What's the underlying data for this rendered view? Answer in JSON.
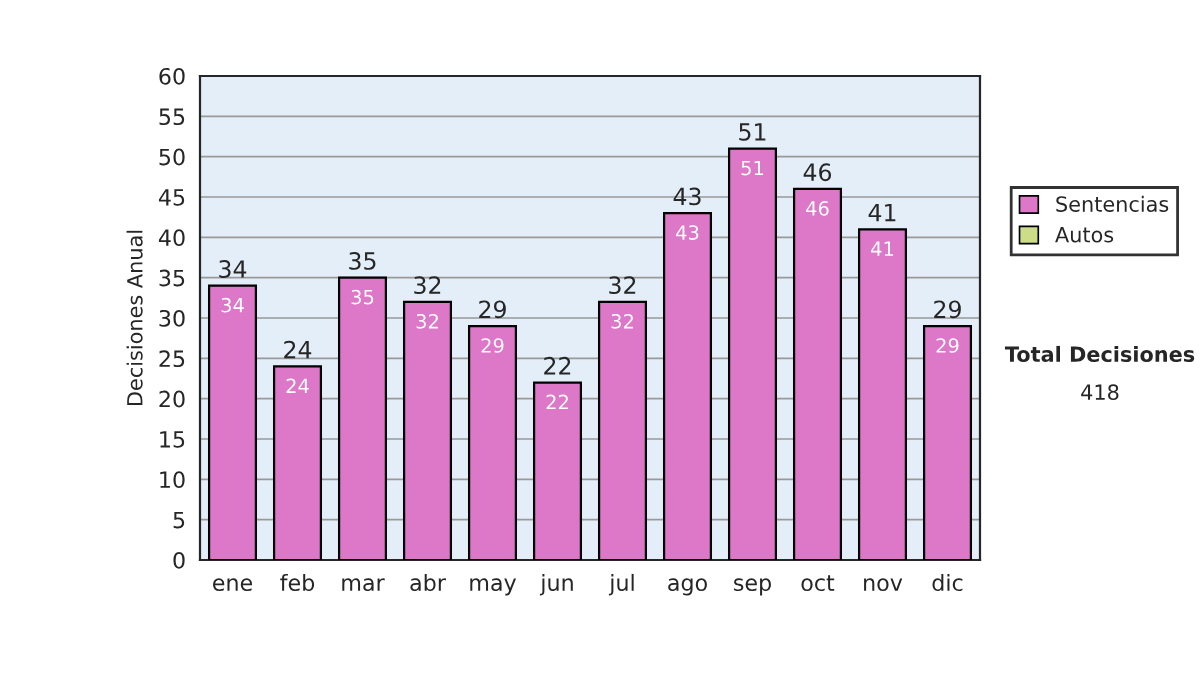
{
  "chart_data": {
    "type": "bar",
    "ylabel": "Decisiones Anual",
    "categories": [
      "ene",
      "feb",
      "mar",
      "abr",
      "may",
      "jun",
      "jul",
      "ago",
      "sep",
      "oct",
      "nov",
      "dic"
    ],
    "series": [
      {
        "name": "Sentencias",
        "color": "#dd77c8",
        "values": [
          34,
          24,
          35,
          32,
          29,
          22,
          32,
          43,
          51,
          46,
          41,
          29
        ],
        "value_labels": [
          "34",
          "24",
          "35",
          "32",
          "29",
          "22",
          "32",
          "43",
          "51",
          "46",
          "41",
          "29"
        ]
      },
      {
        "name": "Autos",
        "color": "#ccdd88",
        "values": [
          0,
          0,
          0,
          0,
          0,
          0,
          0,
          0,
          0,
          0,
          0,
          0
        ]
      }
    ],
    "stacked": true,
    "totals": [
      "34",
      "24",
      "35",
      "32",
      "29",
      "22",
      "32",
      "43",
      "51",
      "46",
      "41",
      "29"
    ],
    "ylim": [
      0,
      60
    ],
    "yticks": [
      0,
      5,
      10,
      15,
      20,
      25,
      30,
      35,
      40,
      45,
      50,
      55,
      60
    ],
    "grid": "y",
    "legend": "right",
    "annotations": [
      "Total Decisiones",
      "418"
    ]
  }
}
